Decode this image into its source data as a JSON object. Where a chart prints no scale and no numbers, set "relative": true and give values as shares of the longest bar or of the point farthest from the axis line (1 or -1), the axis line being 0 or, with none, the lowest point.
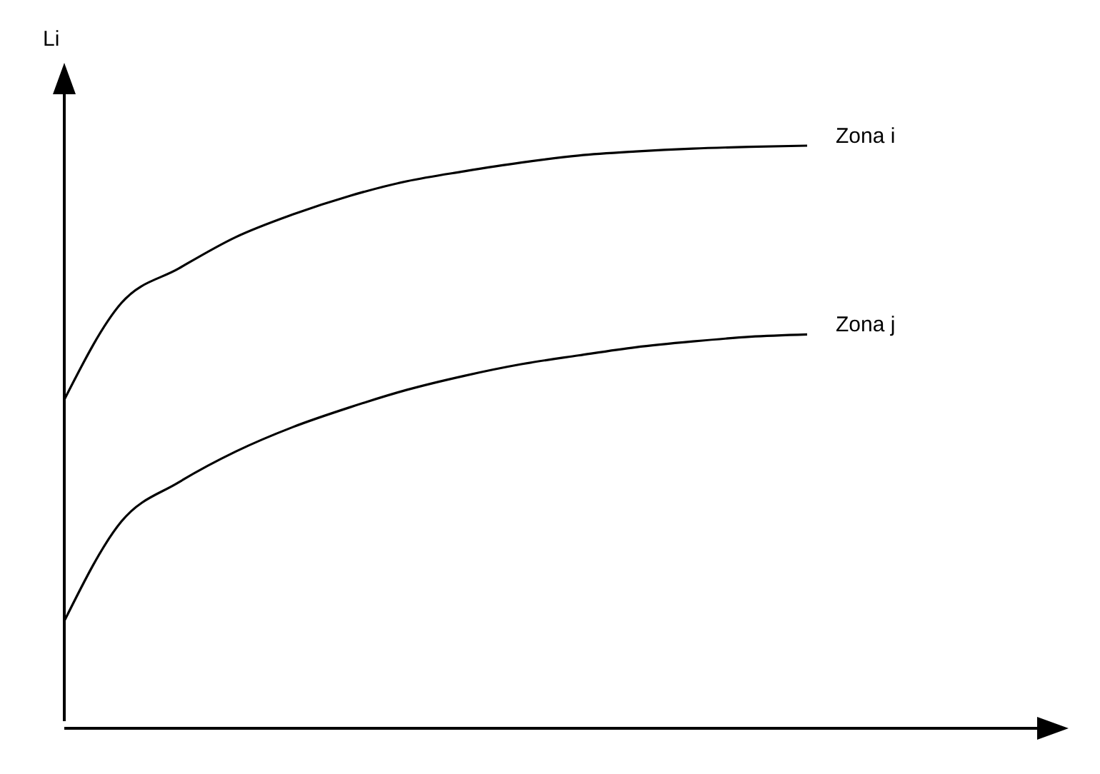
{
  "chart_data": {
    "type": "line",
    "ylabel": "Li",
    "relative": true,
    "legend": false,
    "marker": "none",
    "line_style": "solid",
    "grid": false,
    "categories": [
      null,
      null,
      null,
      null,
      null,
      null,
      null,
      null,
      null,
      null,
      null,
      null,
      null,
      null
    ],
    "series": [
      {
        "name": "Zona i",
        "color": "#000000",
        "values": [
          0.564,
          0.73,
          0.789,
          0.843,
          0.882,
          0.914,
          0.939,
          0.956,
          0.971,
          0.983,
          0.99,
          0.995,
          0.998,
          1
        ]
      },
      {
        "name": "Zona j",
        "color": "#000000",
        "values": [
          0.184,
          0.355,
          0.422,
          0.475,
          0.517,
          0.551,
          0.581,
          0.605,
          0.625,
          0.64,
          0.654,
          0.664,
          0.672,
          0.676
        ]
      }
    ]
  }
}
